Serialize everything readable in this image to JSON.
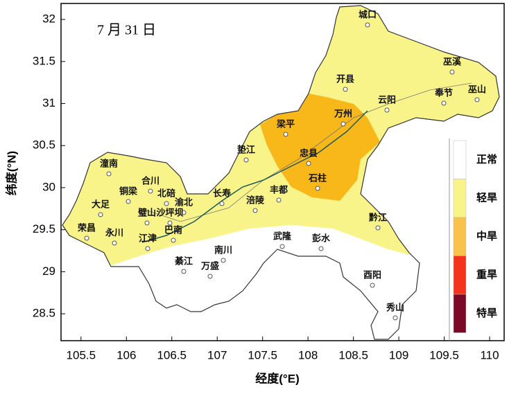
{
  "date_label": "7 月 31 日",
  "x_axis": {
    "title": "经度(°E)",
    "lim": [
      105.28,
      110.16
    ],
    "ticks": [
      105.5,
      106,
      106.5,
      107,
      107.5,
      108,
      108.5,
      109,
      109.5,
      110
    ]
  },
  "y_axis": {
    "title": "纬度(°N)",
    "lim": [
      28.18,
      32.19
    ],
    "ticks": [
      28.5,
      29,
      29.5,
      30,
      30.5,
      31,
      31.5,
      32
    ]
  },
  "legend": [
    {
      "label": "正常",
      "color": "#ffffff"
    },
    {
      "label": "轻旱",
      "color": "#f8f48a"
    },
    {
      "label": "中旱",
      "color": "#f9c24a"
    },
    {
      "label": "重旱",
      "color": "#f5321e"
    },
    {
      "label": "特旱",
      "color": "#7a0a26"
    }
  ],
  "cities": [
    "城口",
    "巫溪",
    "开县",
    "云阳",
    "奉节",
    "巫山",
    "万州",
    "梁平",
    "垫江",
    "忠县",
    "石柱",
    "长寿",
    "丰都",
    "涪陵",
    "潼南",
    "合川",
    "铜梁",
    "北碚",
    "渝北",
    "大足",
    "璧山",
    "沙坪坝",
    "荣昌",
    "永川",
    "巴南",
    "江津",
    "武隆",
    "彭水",
    "黔江",
    "南川",
    "綦江",
    "万盛",
    "酉阳",
    "秀山"
  ]
}
